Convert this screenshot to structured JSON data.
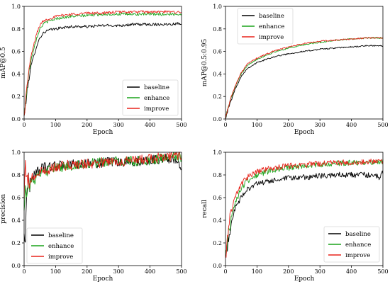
{
  "figure": {
    "legend_entries": [
      "baseline",
      "enhance",
      "improve"
    ],
    "colors": {
      "baseline": "#000000",
      "enhance": "#1aa31a",
      "improve": "#e8241c"
    }
  },
  "chart_data": [
    {
      "type": "line",
      "xlabel": "Epoch",
      "ylabel": "mAP@0.5",
      "xlim": [
        0,
        500
      ],
      "ylim": [
        0,
        1.0
      ],
      "xticks": [
        "0",
        "100",
        "200",
        "300",
        "400",
        "500"
      ],
      "yticks": [
        "0.0",
        "0.2",
        "0.4",
        "0.6",
        "0.8",
        "1.0"
      ],
      "legend": "lower-right",
      "series": [
        {
          "name": "baseline",
          "color": "#000000",
          "x": [
            0,
            10,
            20,
            30,
            40,
            50,
            60,
            70,
            80,
            100,
            120,
            150,
            200,
            250,
            300,
            350,
            400,
            450,
            500
          ],
          "y": [
            0.02,
            0.25,
            0.45,
            0.55,
            0.65,
            0.72,
            0.76,
            0.78,
            0.79,
            0.8,
            0.81,
            0.82,
            0.82,
            0.83,
            0.83,
            0.84,
            0.84,
            0.84,
            0.85
          ],
          "noise": 0.012
        },
        {
          "name": "enhance",
          "color": "#1aa31a",
          "x": [
            0,
            10,
            20,
            30,
            40,
            50,
            60,
            70,
            80,
            100,
            120,
            150,
            200,
            250,
            300,
            350,
            400,
            450,
            500
          ],
          "y": [
            0.02,
            0.3,
            0.5,
            0.62,
            0.72,
            0.8,
            0.84,
            0.86,
            0.87,
            0.89,
            0.9,
            0.91,
            0.92,
            0.93,
            0.93,
            0.93,
            0.93,
            0.93,
            0.93
          ],
          "noise": 0.012
        },
        {
          "name": "improve",
          "color": "#e8241c",
          "x": [
            0,
            10,
            20,
            30,
            40,
            50,
            60,
            70,
            80,
            100,
            120,
            150,
            200,
            250,
            300,
            350,
            400,
            450,
            500
          ],
          "y": [
            0.02,
            0.32,
            0.53,
            0.65,
            0.76,
            0.83,
            0.87,
            0.88,
            0.89,
            0.91,
            0.92,
            0.93,
            0.94,
            0.94,
            0.95,
            0.95,
            0.95,
            0.95,
            0.95
          ],
          "noise": 0.012
        }
      ]
    },
    {
      "type": "line",
      "xlabel": "Epoch",
      "ylabel": "mAP@0.5:0.95",
      "xlim": [
        0,
        500
      ],
      "ylim": [
        0,
        1.0
      ],
      "xticks": [
        "0",
        "100",
        "200",
        "300",
        "400",
        "500"
      ],
      "yticks": [
        "0.0",
        "0.2",
        "0.4",
        "0.6",
        "0.8",
        "1.0"
      ],
      "legend": "top-left",
      "series": [
        {
          "name": "baseline",
          "color": "#000000",
          "x": [
            0,
            10,
            20,
            30,
            50,
            70,
            100,
            150,
            200,
            250,
            300,
            350,
            400,
            450,
            500
          ],
          "y": [
            0.01,
            0.1,
            0.18,
            0.26,
            0.38,
            0.45,
            0.5,
            0.55,
            0.58,
            0.6,
            0.62,
            0.63,
            0.64,
            0.65,
            0.65
          ],
          "noise": 0.006
        },
        {
          "name": "enhance",
          "color": "#1aa31a",
          "x": [
            0,
            10,
            20,
            30,
            50,
            70,
            100,
            150,
            200,
            250,
            300,
            350,
            400,
            450,
            500
          ],
          "y": [
            0.01,
            0.12,
            0.2,
            0.28,
            0.4,
            0.48,
            0.53,
            0.59,
            0.63,
            0.66,
            0.68,
            0.7,
            0.71,
            0.72,
            0.72
          ],
          "noise": 0.006
        },
        {
          "name": "improve",
          "color": "#e8241c",
          "x": [
            0,
            10,
            20,
            30,
            50,
            70,
            100,
            150,
            200,
            250,
            300,
            350,
            400,
            450,
            500
          ],
          "y": [
            0.01,
            0.12,
            0.21,
            0.29,
            0.41,
            0.49,
            0.54,
            0.6,
            0.64,
            0.67,
            0.69,
            0.7,
            0.71,
            0.72,
            0.72
          ],
          "noise": 0.006
        }
      ]
    },
    {
      "type": "line",
      "xlabel": "Epoch",
      "ylabel": "precision",
      "xlim": [
        0,
        500
      ],
      "ylim": [
        0,
        1.0
      ],
      "xticks": [
        "0",
        "100",
        "200",
        "300",
        "400",
        "500"
      ],
      "yticks": [
        "0.0",
        "0.2",
        "0.4",
        "0.6",
        "0.8",
        "1.0"
      ],
      "legend": "lower-left",
      "series": [
        {
          "name": "baseline",
          "color": "#000000",
          "x": [
            0,
            3,
            6,
            10,
            20,
            30,
            50,
            70,
            100,
            150,
            200,
            250,
            300,
            350,
            400,
            450,
            490,
            500
          ],
          "y": [
            0.3,
            0.1,
            0.55,
            0.7,
            0.75,
            0.8,
            0.85,
            0.87,
            0.88,
            0.89,
            0.9,
            0.91,
            0.91,
            0.92,
            0.93,
            0.95,
            0.92,
            0.88
          ],
          "noise": 0.045
        },
        {
          "name": "enhance",
          "color": "#1aa31a",
          "x": [
            0,
            3,
            6,
            10,
            20,
            30,
            50,
            70,
            100,
            150,
            200,
            250,
            300,
            350,
            400,
            450,
            490,
            500
          ],
          "y": [
            0.5,
            0.7,
            0.65,
            0.72,
            0.73,
            0.75,
            0.8,
            0.83,
            0.86,
            0.88,
            0.9,
            0.91,
            0.92,
            0.92,
            0.93,
            0.95,
            0.96,
            0.95
          ],
          "noise": 0.045
        },
        {
          "name": "improve",
          "color": "#e8241c",
          "x": [
            0,
            3,
            6,
            10,
            20,
            30,
            50,
            70,
            100,
            150,
            200,
            250,
            300,
            350,
            400,
            450,
            490,
            500
          ],
          "y": [
            0.6,
            0.9,
            0.72,
            0.75,
            0.76,
            0.78,
            0.82,
            0.84,
            0.87,
            0.89,
            0.9,
            0.91,
            0.92,
            0.93,
            0.94,
            0.96,
            0.97,
            0.96
          ],
          "noise": 0.045
        }
      ]
    },
    {
      "type": "line",
      "xlabel": "Epoch",
      "ylabel": "recall",
      "xlim": [
        0,
        500
      ],
      "ylim": [
        0,
        1.0
      ],
      "xticks": [
        "0",
        "100",
        "200",
        "300",
        "400",
        "500"
      ],
      "yticks": [
        "0.0",
        "0.2",
        "0.4",
        "0.6",
        "0.8",
        "1.0"
      ],
      "legend": "lower-right",
      "series": [
        {
          "name": "baseline",
          "color": "#000000",
          "x": [
            0,
            10,
            20,
            30,
            50,
            70,
            100,
            150,
            200,
            250,
            300,
            350,
            400,
            450,
            490,
            500
          ],
          "y": [
            0.05,
            0.25,
            0.4,
            0.5,
            0.6,
            0.68,
            0.72,
            0.75,
            0.77,
            0.78,
            0.79,
            0.8,
            0.8,
            0.8,
            0.78,
            0.82
          ],
          "noise": 0.025
        },
        {
          "name": "enhance",
          "color": "#1aa31a",
          "x": [
            0,
            10,
            20,
            30,
            50,
            70,
            100,
            150,
            200,
            250,
            300,
            350,
            400,
            450,
            490,
            500
          ],
          "y": [
            0.05,
            0.3,
            0.45,
            0.55,
            0.68,
            0.75,
            0.8,
            0.84,
            0.86,
            0.88,
            0.89,
            0.9,
            0.91,
            0.91,
            0.92,
            0.92
          ],
          "noise": 0.025
        },
        {
          "name": "improve",
          "color": "#e8241c",
          "x": [
            0,
            10,
            20,
            30,
            50,
            70,
            100,
            150,
            200,
            250,
            300,
            350,
            400,
            450,
            490,
            500
          ],
          "y": [
            0.05,
            0.35,
            0.5,
            0.6,
            0.72,
            0.78,
            0.83,
            0.86,
            0.88,
            0.89,
            0.9,
            0.91,
            0.91,
            0.92,
            0.92,
            0.92
          ],
          "noise": 0.025
        }
      ]
    }
  ]
}
